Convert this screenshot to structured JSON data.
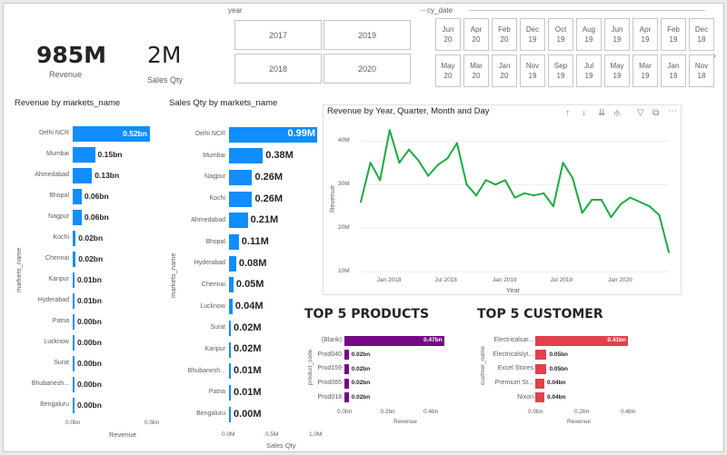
{
  "kpis": {
    "revenue": {
      "value": "985M",
      "label": "Revenue"
    },
    "sales_qty": {
      "value": "2M",
      "label": "Sales Qty"
    }
  },
  "year_slicer": {
    "title": "year",
    "options": [
      "2017",
      "2019",
      "2018",
      "2020"
    ]
  },
  "date_slicer": {
    "title": "cy_date",
    "row1": [
      [
        "Jun",
        "20"
      ],
      [
        "Apr",
        "20"
      ],
      [
        "Feb",
        "20"
      ],
      [
        "Dec",
        "19"
      ],
      [
        "Oct",
        "19"
      ],
      [
        "Aug",
        "19"
      ],
      [
        "Jun",
        "19"
      ],
      [
        "Apr",
        "19"
      ],
      [
        "Feb",
        "19"
      ],
      [
        "Dec",
        "18"
      ]
    ],
    "row2": [
      [
        "May",
        "20"
      ],
      [
        "Mar",
        "20"
      ],
      [
        "Jan",
        "20"
      ],
      [
        "Nov",
        "19"
      ],
      [
        "Sep",
        "19"
      ],
      [
        "Jul",
        "19"
      ],
      [
        "May",
        "19"
      ],
      [
        "Mar",
        "19"
      ],
      [
        "Jan",
        "19"
      ],
      [
        "Nov",
        "18"
      ]
    ]
  },
  "icons": {
    "drill_up": "up-arrow-icon",
    "drill_down": "down-arrow-icon",
    "expand_next": "expand-icon",
    "expand_hierarchy": "hierarchy-icon",
    "filter": "filter-icon",
    "focus": "focus-mode-icon",
    "more": "more-options-icon",
    "next_page": "chevron-right-icon"
  },
  "colors": {
    "revenue_bar": "#118dff",
    "line": "#1aab40",
    "products_bar": "#750985",
    "customers_bar": "#e0414c"
  },
  "chart_data": [
    {
      "id": "rev_markets",
      "type": "bar",
      "title": "Revenue by markets_name",
      "xlabel": "Revenue",
      "ylabel": "markets_name",
      "categories": [
        "Delhi NCR",
        "Mumbai",
        "Ahmedabad",
        "Bhopal",
        "Nagpur",
        "Kochi",
        "Chennai",
        "Kanpur",
        "Hyderabad",
        "Patna",
        "Lucknow",
        "Surat",
        "Bhubanesh...",
        "Bengaluru"
      ],
      "values": [
        0.52,
        0.15,
        0.13,
        0.06,
        0.06,
        0.02,
        0.02,
        0.01,
        0.01,
        0.0,
        0.0,
        0.0,
        0.0,
        0.0
      ],
      "labels": [
        "0.52bn",
        "0.15bn",
        "0.13bn",
        "0.06bn",
        "0.06bn",
        "0.02bn",
        "0.02bn",
        "0.01bn",
        "0.01bn",
        "0.00bn",
        "0.00bn",
        "0.00bn",
        "0.00bn",
        "0.00bn"
      ],
      "xticks": [
        "0.0bn",
        "0.5bn"
      ],
      "xlim": [
        0,
        0.55
      ]
    },
    {
      "id": "qty_markets",
      "type": "bar",
      "title": "Sales Qty by markets_name",
      "xlabel": "Sales Qty",
      "ylabel": "markets_name",
      "categories": [
        "Delhi NCR",
        "Mumbai",
        "Nagpur",
        "Kochi",
        "Ahmedabad",
        "Bhopal",
        "Hyderabad",
        "Chennai",
        "Lucknow",
        "Surat",
        "Kanpur",
        "Bhubanesh...",
        "Patna",
        "Bengaluru"
      ],
      "values": [
        0.99,
        0.38,
        0.26,
        0.26,
        0.21,
        0.11,
        0.08,
        0.05,
        0.04,
        0.02,
        0.02,
        0.01,
        0.01,
        0.0
      ],
      "labels": [
        "0.99M",
        "0.38M",
        "0.26M",
        "0.26M",
        "0.21M",
        "0.11M",
        "0.08M",
        "0.05M",
        "0.04M",
        "0.02M",
        "0.02M",
        "0.01M",
        "0.01M",
        "0.00M"
      ],
      "xticks": [
        "0.0M",
        "0.5M",
        "1.0M"
      ],
      "xlim": [
        0,
        1.0
      ]
    },
    {
      "id": "rev_time",
      "type": "line",
      "title": "Revenue by Year, Quarter, Month and Day",
      "xlabel": "Year",
      "ylabel": "Revenue",
      "yticks": [
        "40M",
        "30M",
        "20M",
        "10M"
      ],
      "ytick_values": [
        40,
        30,
        20,
        10
      ],
      "ylim": [
        9,
        44
      ],
      "xticks": [
        "Jan 2018",
        "Jul 2018",
        "Jan 2019",
        "Jul 2019",
        "Jan 2020"
      ],
      "xtick_index": [
        3,
        9,
        15,
        21,
        27
      ],
      "values": [
        26,
        35,
        31,
        42.5,
        35,
        38,
        35.5,
        32,
        34.5,
        36,
        39.5,
        30,
        27.5,
        31,
        30,
        31,
        27,
        28,
        27.5,
        28,
        25,
        35,
        31.5,
        23.5,
        26.5,
        26.5,
        22.5,
        25.5,
        27,
        26,
        25,
        23,
        14.5
      ]
    },
    {
      "id": "top_products",
      "type": "bar",
      "title": "TOP 5 PRODUCTS",
      "xlabel": "Revenue",
      "ylabel": "product_code",
      "categories": [
        "(Blank)",
        "Prod040",
        "Prod159",
        "Prod065",
        "Prod018"
      ],
      "values": [
        0.47,
        0.02,
        0.02,
        0.02,
        0.02
      ],
      "labels": [
        "0.47bn",
        "0.02bn",
        "0.02bn",
        "0.02bn",
        "0.02bn"
      ],
      "xticks": [
        "0.0bn",
        "0.2bn",
        "0.4bn"
      ],
      "xlim": [
        0,
        0.48
      ]
    },
    {
      "id": "top_customers",
      "type": "bar",
      "title": "TOP 5 CUSTOMER",
      "xlabel": "Revenue",
      "ylabel": "custmer_name",
      "categories": [
        "Electricalsar...",
        "Electricalslyt...",
        "Excel Stores",
        "Premium St...",
        "Nixon"
      ],
      "values": [
        0.41,
        0.05,
        0.05,
        0.04,
        0.04
      ],
      "labels": [
        "0.41bn",
        "0.05bn",
        "0.05bn",
        "0.04bn",
        "0.04bn"
      ],
      "xticks": [
        "0.0bn",
        "0.2bn",
        "0.4bn"
      ],
      "xlim": [
        0,
        0.41
      ]
    }
  ]
}
